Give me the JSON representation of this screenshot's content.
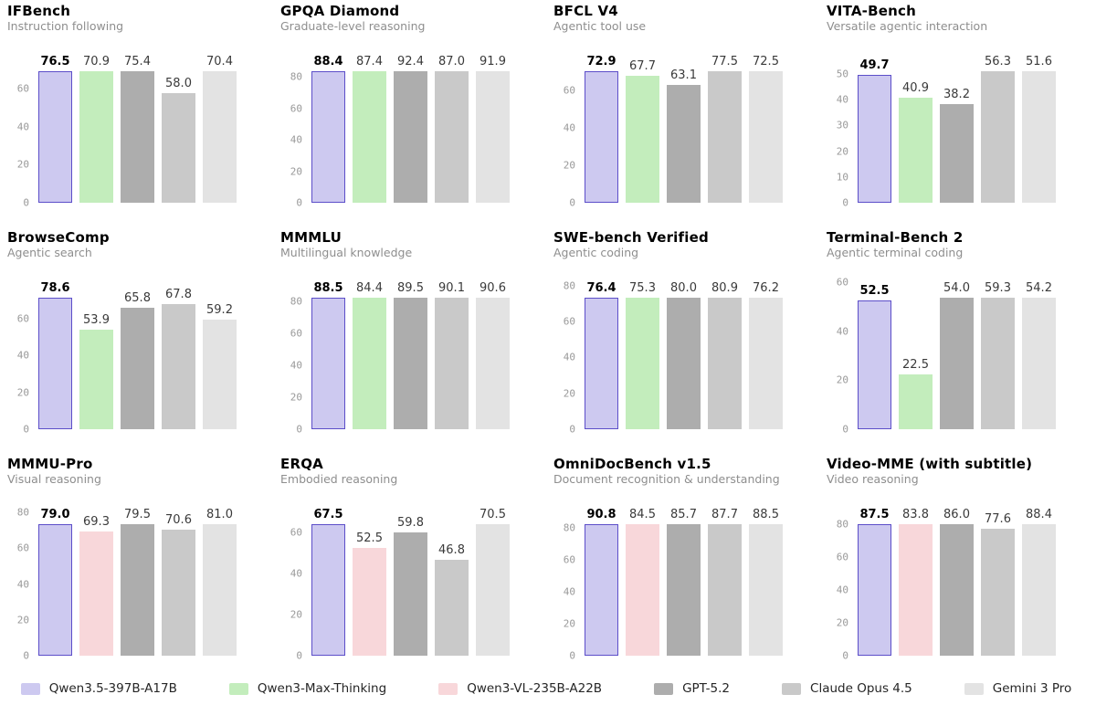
{
  "page": {
    "background": "#ffffff"
  },
  "colors": {
    "Qwen3.5-397B-A17B": {
      "fill": "#cdc9f0",
      "border": "#5c4ec9",
      "highlight": true
    },
    "Qwen3-Max-Thinking": {
      "fill": "#c3edbc"
    },
    "Qwen3-VL-235B-A22B": {
      "fill": "#f8d7da"
    },
    "GPT-5.2": {
      "fill": "#adadad"
    },
    "Claude Opus 4.5": {
      "fill": "#c9c9c9"
    },
    "Gemini 3 Pro": {
      "fill": "#e3e3e3"
    }
  },
  "legend": {
    "items": [
      {
        "label": "Qwen3.5-397B-A17B"
      },
      {
        "label": "Qwen3-Max-Thinking"
      },
      {
        "label": "Qwen3-VL-235B-A22B"
      },
      {
        "label": "GPT-5.2"
      },
      {
        "label": "Claude Opus 4.5"
      },
      {
        "label": "Gemini 3 Pro"
      }
    ]
  },
  "chart_data": [
    {
      "type": "bar",
      "title": "IFBench",
      "subtitle": "Instruction following",
      "categories": [
        "Qwen3.5-397B-A17B",
        "Qwen3-Max-Thinking",
        "GPT-5.2",
        "Claude Opus 4.5",
        "Gemini 3 Pro"
      ],
      "values": [
        76.5,
        70.9,
        75.4,
        58.0,
        70.4
      ],
      "ylim": [
        0,
        78.0
      ],
      "yticks": [
        0,
        20,
        40,
        60
      ],
      "grid": false,
      "legend_position": "bottom-shared"
    },
    {
      "type": "bar",
      "title": "GPQA Diamond",
      "subtitle": "Graduate-level reasoning",
      "categories": [
        "Qwen3.5-397B-A17B",
        "Qwen3-Max-Thinking",
        "GPT-5.2",
        "Claude Opus 4.5",
        "Gemini 3 Pro"
      ],
      "values": [
        88.4,
        87.4,
        92.4,
        87.0,
        91.9
      ],
      "ylim": [
        0,
        94.2
      ],
      "yticks": [
        0,
        20,
        40,
        60,
        80
      ],
      "grid": false,
      "legend_position": "bottom-shared"
    },
    {
      "type": "bar",
      "title": "BFCL V4",
      "subtitle": "Agentic tool use",
      "categories": [
        "Qwen3.5-397B-A17B",
        "Qwen3-Max-Thinking",
        "GPT-5.2",
        "Claude Opus 4.5",
        "Gemini 3 Pro"
      ],
      "values": [
        72.9,
        67.7,
        63.1,
        77.5,
        72.5
      ],
      "ylim": [
        0,
        79.1
      ],
      "yticks": [
        0,
        20,
        40,
        60
      ],
      "grid": false,
      "legend_position": "bottom-shared"
    },
    {
      "type": "bar",
      "title": "VITA-Bench",
      "subtitle": "Versatile agentic interaction",
      "categories": [
        "Qwen3.5-397B-A17B",
        "Qwen3-Max-Thinking",
        "GPT-5.2",
        "Claude Opus 4.5",
        "Gemini 3 Pro"
      ],
      "values": [
        49.7,
        40.9,
        38.2,
        56.3,
        51.6
      ],
      "ylim": [
        0,
        57.4
      ],
      "yticks": [
        0,
        10,
        20,
        30,
        40,
        50
      ],
      "grid": false,
      "legend_position": "bottom-shared"
    },
    {
      "type": "bar",
      "title": "BrowseComp",
      "subtitle": "Agentic search",
      "categories": [
        "Qwen3.5-397B-A17B",
        "Qwen3-Max-Thinking",
        "GPT-5.2",
        "Claude Opus 4.5",
        "Gemini 3 Pro"
      ],
      "values": [
        78.6,
        53.9,
        65.8,
        67.8,
        59.2
      ],
      "ylim": [
        0,
        80.2
      ],
      "yticks": [
        0,
        20,
        40,
        60
      ],
      "grid": false,
      "legend_position": "bottom-shared"
    },
    {
      "type": "bar",
      "title": "MMMLU",
      "subtitle": "Multilingual knowledge",
      "categories": [
        "Qwen3.5-397B-A17B",
        "Qwen3-Max-Thinking",
        "GPT-5.2",
        "Claude Opus 4.5",
        "Gemini 3 Pro"
      ],
      "values": [
        88.5,
        84.4,
        89.5,
        90.1,
        90.6
      ],
      "ylim": [
        0,
        92.4
      ],
      "yticks": [
        0,
        20,
        40,
        60,
        80
      ],
      "grid": false,
      "legend_position": "bottom-shared"
    },
    {
      "type": "bar",
      "title": "SWE-bench Verified",
      "subtitle": "Agentic coding",
      "categories": [
        "Qwen3.5-397B-A17B",
        "Qwen3-Max-Thinking",
        "GPT-5.2",
        "Claude Opus 4.5",
        "Gemini 3 Pro"
      ],
      "values": [
        76.4,
        75.3,
        80.0,
        80.9,
        76.2
      ],
      "ylim": [
        0,
        82.5
      ],
      "yticks": [
        0,
        20,
        40,
        60,
        80
      ],
      "grid": false,
      "legend_position": "bottom-shared"
    },
    {
      "type": "bar",
      "title": "Terminal-Bench 2",
      "subtitle": "Agentic terminal coding",
      "categories": [
        "Qwen3.5-397B-A17B",
        "Qwen3-Max-Thinking",
        "GPT-5.2",
        "Claude Opus 4.5",
        "Gemini 3 Pro"
      ],
      "values": [
        52.5,
        22.5,
        54.0,
        59.3,
        54.2
      ],
      "ylim": [
        0,
        60.5
      ],
      "yticks": [
        0,
        20,
        40,
        60
      ],
      "grid": false,
      "legend_position": "bottom-shared"
    },
    {
      "type": "bar",
      "title": "MMMU-Pro",
      "subtitle": "Visual reasoning",
      "categories": [
        "Qwen3.5-397B-A17B",
        "Qwen3-VL-235B-A22B",
        "GPT-5.2",
        "Claude Opus 4.5",
        "Gemini 3 Pro"
      ],
      "values": [
        79.0,
        69.3,
        79.5,
        70.6,
        81.0
      ],
      "ylim": [
        0,
        82.6
      ],
      "yticks": [
        0,
        20,
        40,
        60,
        80
      ],
      "grid": false,
      "legend_position": "bottom-shared"
    },
    {
      "type": "bar",
      "title": "ERQA",
      "subtitle": "Embodied reasoning",
      "categories": [
        "Qwen3.5-397B-A17B",
        "Qwen3-VL-235B-A22B",
        "GPT-5.2",
        "Claude Opus 4.5",
        "Gemini 3 Pro"
      ],
      "values": [
        67.5,
        52.5,
        59.8,
        46.8,
        70.5
      ],
      "ylim": [
        0,
        71.9
      ],
      "yticks": [
        0,
        20,
        40,
        60
      ],
      "grid": false,
      "legend_position": "bottom-shared"
    },
    {
      "type": "bar",
      "title": "OmniDocBench v1.5",
      "subtitle": "Document recognition & understanding",
      "categories": [
        "Qwen3.5-397B-A17B",
        "Qwen3-VL-235B-A22B",
        "GPT-5.2",
        "Claude Opus 4.5",
        "Gemini 3 Pro"
      ],
      "values": [
        90.8,
        84.5,
        85.7,
        87.7,
        88.5
      ],
      "ylim": [
        0,
        92.6
      ],
      "yticks": [
        0,
        20,
        40,
        60,
        80
      ],
      "grid": false,
      "legend_position": "bottom-shared"
    },
    {
      "type": "bar",
      "title": "Video-MME (with subtitle)",
      "subtitle": "Video reasoning",
      "categories": [
        "Qwen3.5-397B-A17B",
        "Qwen3-VL-235B-A22B",
        "GPT-5.2",
        "Claude Opus 4.5",
        "Gemini 3 Pro"
      ],
      "values": [
        87.5,
        83.8,
        86.0,
        77.6,
        88.4
      ],
      "ylim": [
        0,
        90.2
      ],
      "yticks": [
        0,
        20,
        40,
        60,
        80
      ],
      "grid": false,
      "legend_position": "bottom-shared"
    }
  ]
}
